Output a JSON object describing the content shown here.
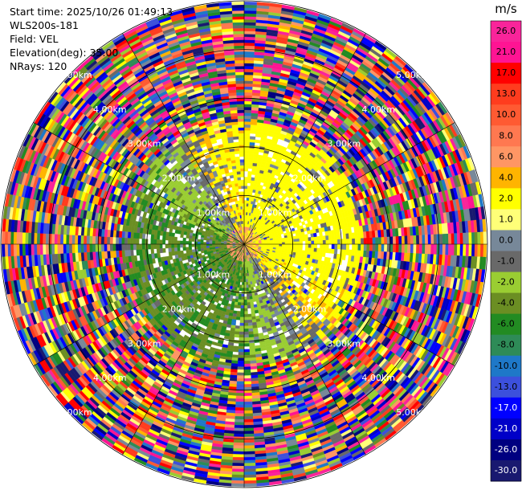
{
  "header": {
    "start_time": "Start time: 2025/10/26 01:49:13",
    "instrument": "WLS200s-181",
    "field": "Field: VEL",
    "elevation": "Elevation(deg): 35.00",
    "nrays": "NRays: 120"
  },
  "chart_data": {
    "type": "heatmap",
    "projection": "polar-ppi",
    "field": "VEL",
    "units": "m/s",
    "nrays": 120,
    "elevation_deg": 35.0,
    "max_range_km": 5.0,
    "range_ring_labels": [
      "1.00km",
      "2.00km",
      "3.00km",
      "4.00km",
      "5.00km"
    ],
    "range_rings_km": [
      1,
      2,
      3,
      4,
      5
    ],
    "colorbar": {
      "label": "m/s",
      "tick_labels": [
        "26.0",
        "21.0",
        "17.0",
        "13.0",
        "10.0",
        "8.0",
        "6.0",
        "4.0",
        "2.0",
        "1.0",
        "0.0",
        "-1.0",
        "-2.0",
        "-4.0",
        "-6.0",
        "-8.0",
        "-10.0",
        "-13.0",
        "-17.0",
        "-21.0",
        "-26.0",
        "-30.0"
      ],
      "colors": [
        "#f9249a",
        "#ff1493",
        "#ff0000",
        "#ff3c1e",
        "#ff5a32",
        "#ff7850",
        "#ff9664",
        "#ffb400",
        "#ffff00",
        "#ffff78",
        "#778899",
        "#696969",
        "#9acd32",
        "#6b8e23",
        "#228b22",
        "#2e8b57",
        "#1e78c8",
        "#3c50dc",
        "#0000ff",
        "#0000c8",
        "#000080",
        "#191970"
      ]
    },
    "clear_air_extent_km": 2.3,
    "noise_beyond_km": 2.5
  }
}
